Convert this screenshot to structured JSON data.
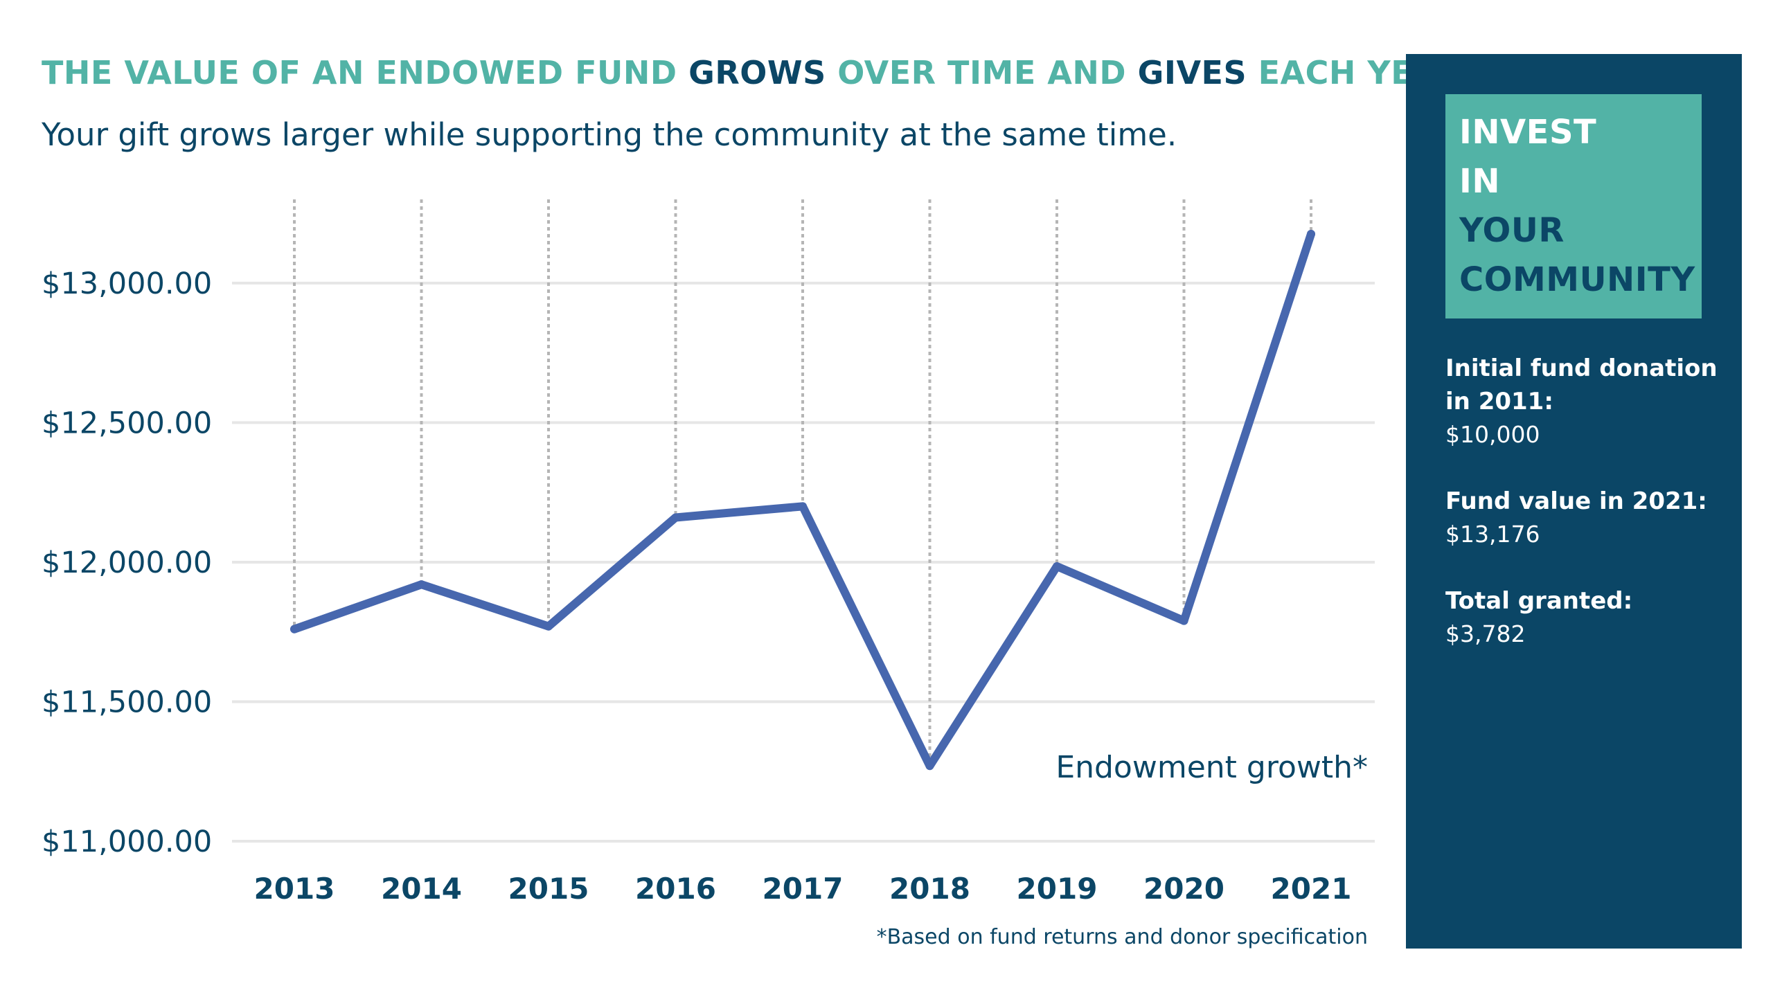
{
  "header": {
    "title_parts": [
      {
        "text": "THE VALUE OF AN ENDOWED FUND ",
        "emphasis": false
      },
      {
        "text": "GROWS",
        "emphasis": true
      },
      {
        "text": " OVER TIME AND ",
        "emphasis": false
      },
      {
        "text": "GIVES",
        "emphasis": true
      },
      {
        "text": " EACH YEAR",
        "emphasis": false
      }
    ],
    "subtitle": "Your gift grows larger while supporting the community at the same time."
  },
  "colors": {
    "teal": "#52b3a6",
    "navy": "#0b4666",
    "line": "#4767ae",
    "gridline": "#e6e6e6",
    "dotted": "#b5b5b5"
  },
  "chart_data": {
    "type": "line",
    "categories": [
      "2013",
      "2014",
      "2015",
      "2016",
      "2017",
      "2018",
      "2019",
      "2020",
      "2021"
    ],
    "series": [
      {
        "name": "Endowment growth*",
        "values": [
          11760,
          11920,
          11770,
          12160,
          12200,
          11270,
          11985,
          11790,
          13176
        ]
      }
    ],
    "ylim": [
      11000,
      13300
    ],
    "y_ticks": [
      11000,
      11500,
      12000,
      12500,
      13000
    ],
    "y_tick_labels": [
      "$11,000.00",
      "$11,500.00",
      "$12,000.00",
      "$12,500.00",
      "$13,000.00"
    ],
    "grid": "horizontal",
    "drop_lines": true,
    "legend_placement": "bottom-right",
    "footnote": "*Based on fund returns and donor specification"
  },
  "sidebar": {
    "heading_lines": [
      {
        "text": "INVEST",
        "tone": "light"
      },
      {
        "text": "IN",
        "tone": "light"
      },
      {
        "text": "YOUR",
        "tone": "dark"
      },
      {
        "text": "COMMUNITY",
        "tone": "dark"
      }
    ],
    "stats": [
      {
        "label": "Initial fund donation in 2011:",
        "value": "$10,000"
      },
      {
        "label": "Fund value in 2021:",
        "value": "$13,176"
      },
      {
        "label": "Total granted:",
        "value": "$3,782"
      }
    ]
  }
}
